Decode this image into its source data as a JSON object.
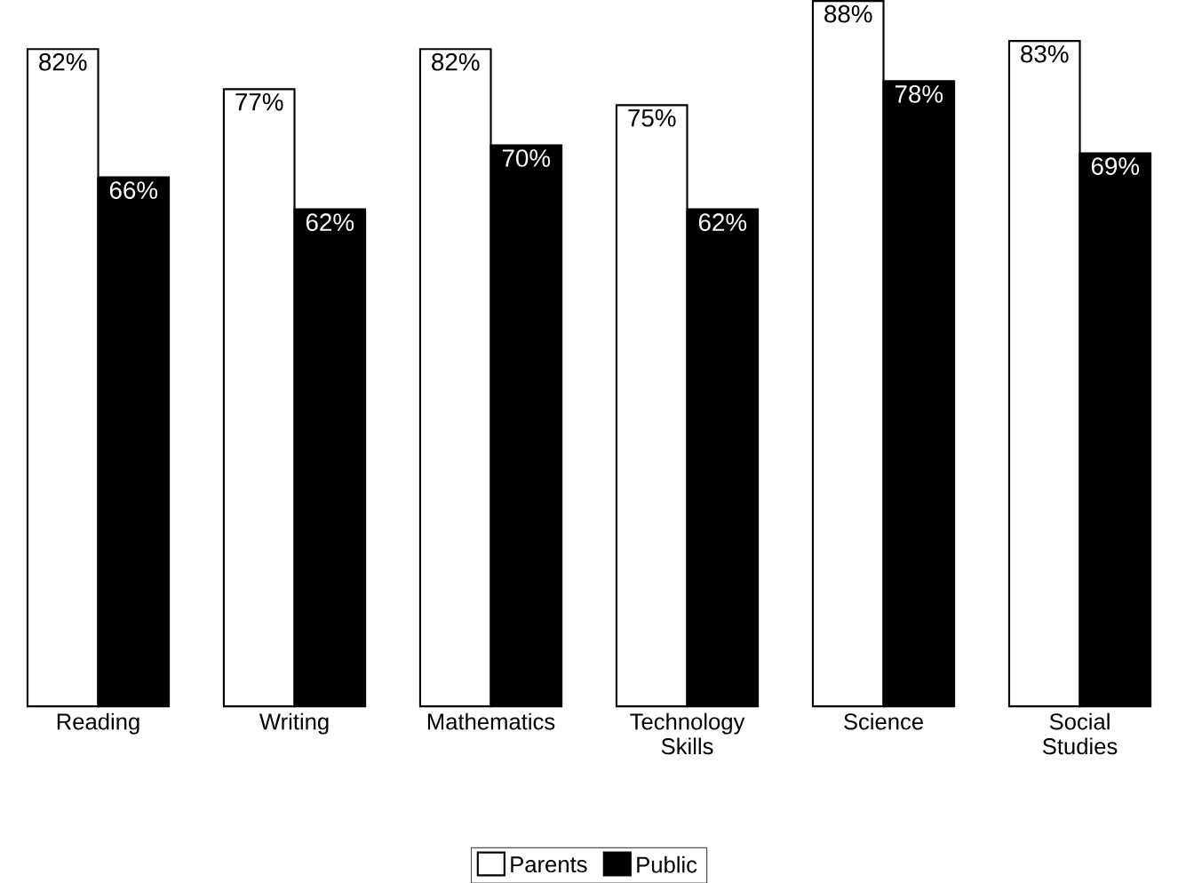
{
  "chart_data": {
    "type": "bar",
    "categories": [
      "Reading",
      "Writing",
      "Mathematics",
      "Technology Skills",
      "Science",
      "Social Studies"
    ],
    "series": [
      {
        "name": "Parents",
        "color": "#ffffff",
        "values": [
          82,
          77,
          82,
          75,
          88,
          83
        ],
        "value_labels": [
          "82%",
          "77%",
          "82%",
          "75%",
          "88%",
          "83%"
        ]
      },
      {
        "name": "Public",
        "color": "#000000",
        "values": [
          66,
          62,
          70,
          62,
          78,
          69
        ],
        "value_labels": [
          "66%",
          "62%",
          "70%",
          "62%",
          "78%",
          "69%"
        ]
      }
    ],
    "legend": "bottom"
  }
}
